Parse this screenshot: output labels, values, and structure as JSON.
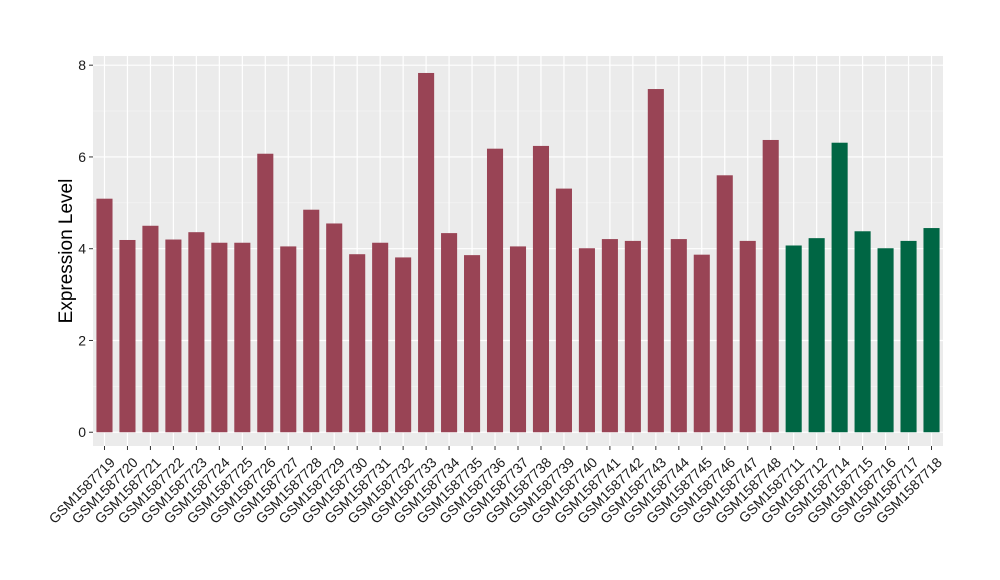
{
  "chart_data": {
    "type": "bar",
    "title": "",
    "xlabel": "",
    "ylabel": "Expression Level",
    "ylim": [
      -0.3,
      8.2
    ],
    "yticks": [
      0,
      2,
      4,
      6,
      8
    ],
    "grid": true,
    "legend": "none",
    "categories": [
      "GSM1587719",
      "GSM1587720",
      "GSM1587721",
      "GSM1587722",
      "GSM1587723",
      "GSM1587724",
      "GSM1587725",
      "GSM1587726",
      "GSM1587727",
      "GSM1587728",
      "GSM1587729",
      "GSM1587730",
      "GSM1587731",
      "GSM1587732",
      "GSM1587733",
      "GSM1587734",
      "GSM1587735",
      "GSM1587736",
      "GSM1587737",
      "GSM1587738",
      "GSM1587739",
      "GSM1587740",
      "GSM1587741",
      "GSM1587742",
      "GSM1587743",
      "GSM1587744",
      "GSM1587745",
      "GSM1587746",
      "GSM1587747",
      "GSM1587748",
      "GSM1587711",
      "GSM1587712",
      "GSM1587714",
      "GSM1587715",
      "GSM1587716",
      "GSM1587717",
      "GSM1587718"
    ],
    "values": [
      5.09,
      4.19,
      4.5,
      4.2,
      4.36,
      4.13,
      4.13,
      6.07,
      4.05,
      4.85,
      4.55,
      3.88,
      4.13,
      3.81,
      7.83,
      4.34,
      3.86,
      6.18,
      4.05,
      6.24,
      5.31,
      4.01,
      4.21,
      4.17,
      7.48,
      4.21,
      3.87,
      5.6,
      4.17,
      6.37,
      4.07,
      4.23,
      6.31,
      4.38,
      4.01,
      4.17,
      4.45
    ],
    "group_colors": [
      "#994455",
      "#994455",
      "#994455",
      "#994455",
      "#994455",
      "#994455",
      "#994455",
      "#994455",
      "#994455",
      "#994455",
      "#994455",
      "#994455",
      "#994455",
      "#994455",
      "#994455",
      "#994455",
      "#994455",
      "#994455",
      "#994455",
      "#994455",
      "#994455",
      "#994455",
      "#994455",
      "#994455",
      "#994455",
      "#994455",
      "#994455",
      "#994455",
      "#994455",
      "#994455",
      "#006644",
      "#006644",
      "#006644",
      "#006644",
      "#006644",
      "#006644",
      "#006644"
    ]
  },
  "colors": {
    "panel_background": "#ebebeb",
    "grid_major": "#ffffff",
    "group_a": "#994455",
    "group_b": "#006644"
  }
}
